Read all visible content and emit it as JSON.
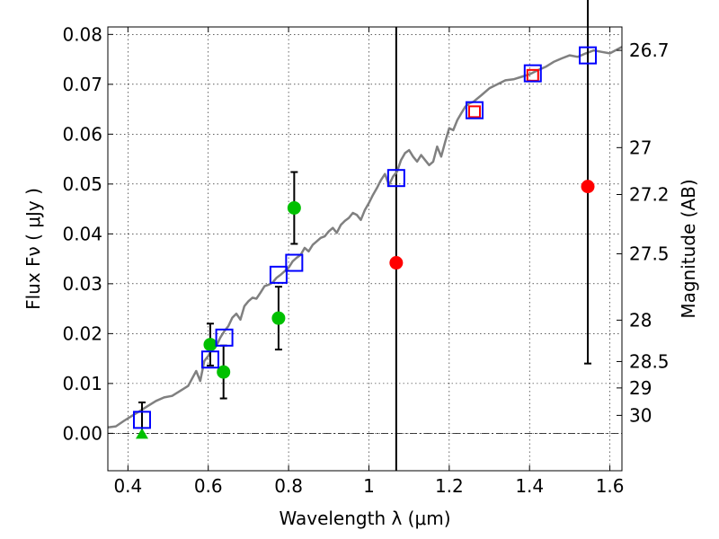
{
  "chart_data": {
    "type": "scatter",
    "title": "",
    "xlabel": "Wavelength  λ (μm)",
    "ylabel": "Flux  Fν  ( μJy )",
    "ylabel_right": "Magnitude (AB)",
    "xlim": [
      0.35,
      1.63
    ],
    "ylim": [
      -0.0075,
      0.0815
    ],
    "grid": true,
    "x_ticks": [
      0.4,
      0.6,
      0.8,
      1.0,
      1.2,
      1.4,
      1.6
    ],
    "x_tick_labels": [
      "0.4",
      "0.6",
      "0.8",
      "1",
      "1.2",
      "1.4",
      "1.6"
    ],
    "y_ticks": [
      0.0,
      0.01,
      0.02,
      0.03,
      0.04,
      0.05,
      0.06,
      0.07,
      0.08
    ],
    "y_tick_labels": [
      "0.00",
      "0.01",
      "0.02",
      "0.03",
      "0.04",
      "0.05",
      "0.06",
      "0.07",
      "0.08"
    ],
    "mag_ticks": [
      {
        "label": "26.7",
        "flux": 0.0768
      },
      {
        "label": "27",
        "flux": 0.0573
      },
      {
        "label": "27.2",
        "flux": 0.0479
      },
      {
        "label": "27.5",
        "flux": 0.036
      },
      {
        "label": "28",
        "flux": 0.0227
      },
      {
        "label": "28.5",
        "flux": 0.0144
      },
      {
        "label": "29",
        "flux": 0.0091
      },
      {
        "label": "30",
        "flux": 0.0036
      }
    ],
    "vertical_lines": [
      1.068
    ],
    "hline_dashdot": 0.0,
    "model_sed": {
      "color": "#808080",
      "x": [
        0.35,
        0.37,
        0.39,
        0.41,
        0.43,
        0.45,
        0.47,
        0.49,
        0.51,
        0.53,
        0.55,
        0.56,
        0.57,
        0.58,
        0.59,
        0.6,
        0.61,
        0.62,
        0.63,
        0.64,
        0.65,
        0.66,
        0.67,
        0.68,
        0.69,
        0.7,
        0.71,
        0.72,
        0.73,
        0.74,
        0.75,
        0.76,
        0.77,
        0.78,
        0.79,
        0.8,
        0.81,
        0.82,
        0.83,
        0.84,
        0.85,
        0.86,
        0.87,
        0.88,
        0.89,
        0.9,
        0.91,
        0.92,
        0.93,
        0.94,
        0.95,
        0.96,
        0.97,
        0.98,
        0.99,
        1.0,
        1.01,
        1.02,
        1.03,
        1.04,
        1.05,
        1.06,
        1.07,
        1.08,
        1.09,
        1.1,
        1.11,
        1.12,
        1.13,
        1.14,
        1.15,
        1.16,
        1.17,
        1.18,
        1.19,
        1.2,
        1.21,
        1.22,
        1.23,
        1.24,
        1.25,
        1.26,
        1.28,
        1.3,
        1.32,
        1.34,
        1.36,
        1.38,
        1.4,
        1.42,
        1.44,
        1.46,
        1.48,
        1.5,
        1.52,
        1.54,
        1.56,
        1.58,
        1.6,
        1.63
      ],
      "y": [
        0.0012,
        0.0014,
        0.0025,
        0.0035,
        0.0045,
        0.0055,
        0.0065,
        0.0072,
        0.0075,
        0.0085,
        0.0095,
        0.011,
        0.0125,
        0.0105,
        0.0145,
        0.0155,
        0.017,
        0.0175,
        0.0192,
        0.0205,
        0.0215,
        0.0232,
        0.024,
        0.0228,
        0.0255,
        0.0265,
        0.0272,
        0.027,
        0.0282,
        0.0295,
        0.0298,
        0.0302,
        0.0312,
        0.0318,
        0.0325,
        0.0332,
        0.0345,
        0.0352,
        0.0358,
        0.0372,
        0.0365,
        0.0378,
        0.0385,
        0.0392,
        0.0395,
        0.0405,
        0.0412,
        0.0402,
        0.0418,
        0.0426,
        0.0432,
        0.0442,
        0.0438,
        0.0428,
        0.0448,
        0.0462,
        0.0478,
        0.0492,
        0.0508,
        0.052,
        0.0498,
        0.0515,
        0.0525,
        0.0548,
        0.0562,
        0.0568,
        0.0555,
        0.0545,
        0.0558,
        0.0548,
        0.0538,
        0.0545,
        0.0575,
        0.0555,
        0.0585,
        0.0612,
        0.0608,
        0.0628,
        0.0642,
        0.0655,
        0.0662,
        0.0665,
        0.0678,
        0.0692,
        0.07,
        0.0708,
        0.071,
        0.0715,
        0.072,
        0.0728,
        0.0735,
        0.0745,
        0.0752,
        0.0758,
        0.0755,
        0.0762,
        0.0768,
        0.0765,
        0.0762,
        0.0775
      ]
    },
    "series": [
      {
        "marker": "circle",
        "color": "#00c000",
        "points": [
          {
            "x": 0.605,
            "y": 0.0178,
            "yerr": 0.0042
          },
          {
            "x": 0.638,
            "y": 0.0123,
            "yerr": 0.0053
          },
          {
            "x": 0.775,
            "y": 0.0231,
            "yerr": 0.0063
          },
          {
            "x": 0.814,
            "y": 0.0452,
            "yerr": 0.0072
          }
        ]
      },
      {
        "marker": "triangle",
        "color": "#00c000",
        "points": [
          {
            "x": 0.435,
            "y": -0.0002
          }
        ]
      },
      {
        "marker": "circle",
        "color": "#ff0000",
        "points": [
          {
            "x": 1.068,
            "y": 0.0342
          },
          {
            "x": 1.545,
            "y": 0.0495
          }
        ]
      },
      {
        "marker": "square-open",
        "color": "#ff0000",
        "points": [
          {
            "x": 1.263,
            "y": 0.0645
          },
          {
            "x": 1.408,
            "y": 0.0718
          }
        ]
      },
      {
        "marker": "square-open",
        "color": "#0000ff",
        "points": [
          {
            "x": 0.435,
            "y": 0.0027,
            "yerr": 0.0035
          },
          {
            "x": 0.605,
            "y": 0.0148
          },
          {
            "x": 0.64,
            "y": 0.0192
          },
          {
            "x": 0.775,
            "y": 0.0318
          },
          {
            "x": 0.814,
            "y": 0.0342
          },
          {
            "x": 1.068,
            "y": 0.0512
          },
          {
            "x": 1.263,
            "y": 0.0648
          },
          {
            "x": 1.408,
            "y": 0.0722
          },
          {
            "x": 1.545,
            "y": 0.0758,
            "yerr": 0.0618
          }
        ]
      }
    ]
  }
}
